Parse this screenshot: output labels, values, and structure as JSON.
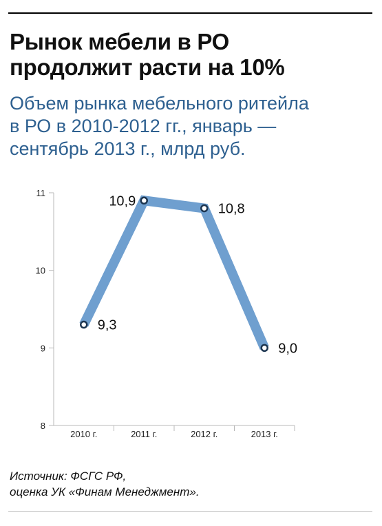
{
  "headline": {
    "line1": "Рынок мебели в РО",
    "line2": "продолжит расти на 10%"
  },
  "subtitle": {
    "line1": "Объем рынка мебельного ритейла",
    "line2": "в РО в 2010-2012 гг., январь —",
    "line3": "сентябрь 2013 г., млрд руб."
  },
  "source": {
    "line1": "Источник: ФСГС РФ,",
    "line2": "оценка УК «Финам Менеджмент»."
  },
  "chart_data": {
    "type": "line",
    "categories": [
      "2010 г.",
      "2011 г.",
      "2012 г.",
      "2013 г."
    ],
    "series": [
      {
        "values": [
          9.3,
          10.9,
          10.8,
          9.0
        ],
        "labels": [
          "9,3",
          "10,9",
          "10,8",
          "9,0"
        ]
      }
    ],
    "ylim": [
      8,
      11
    ],
    "yticks": [
      8,
      9,
      10,
      11
    ],
    "ytick_labels": [
      "8",
      "9",
      "10",
      "11"
    ],
    "label_positions": [
      "right",
      "left",
      "right",
      "right"
    ],
    "grid": false,
    "line_color": "#6f9fcf",
    "marker_stroke": "#1c3550"
  }
}
